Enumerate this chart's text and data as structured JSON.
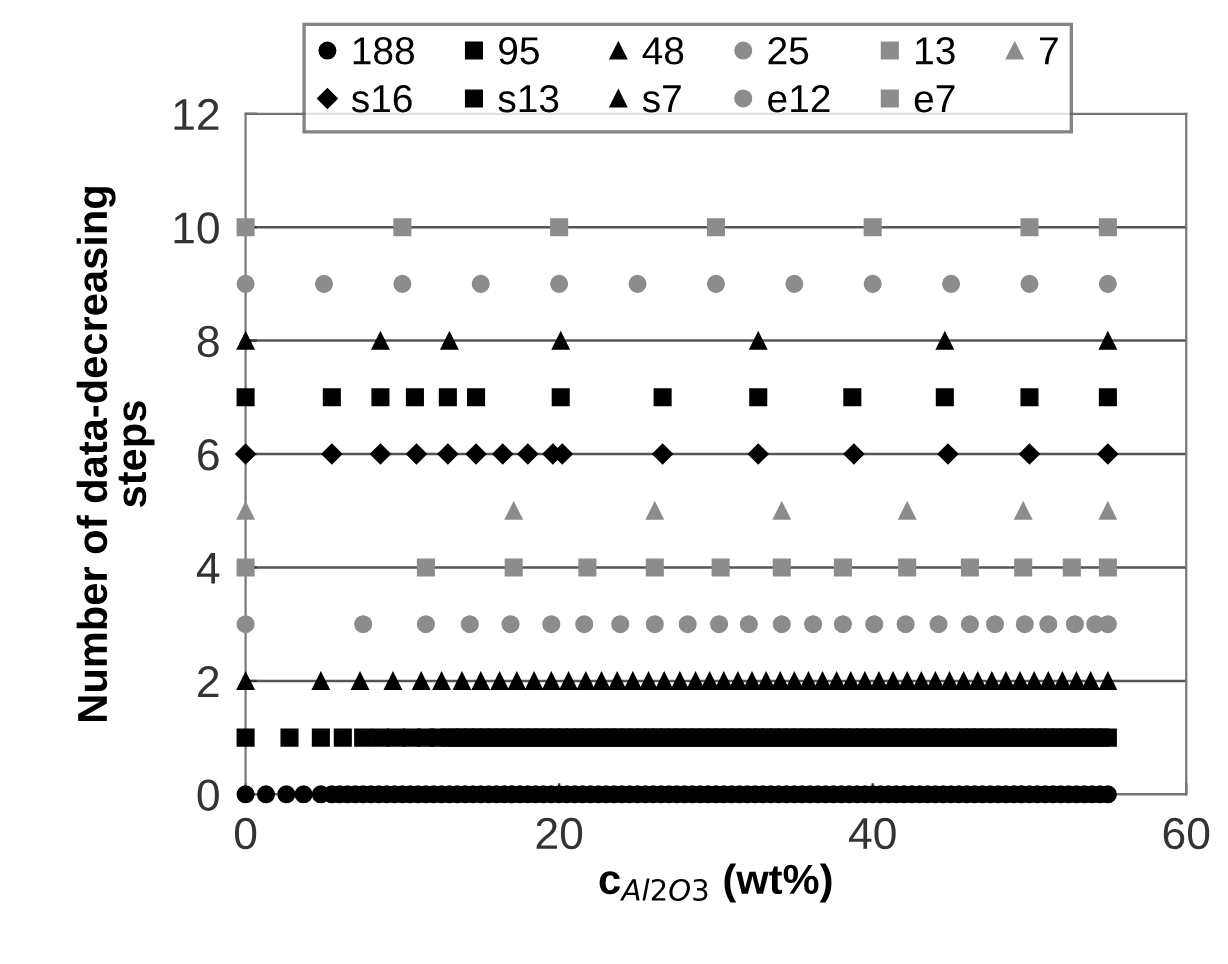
{
  "chart_data": {
    "type": "scatter",
    "xlabel": "c$_{Al2O3}$ (wt%)",
    "ylabel": "Number of data-decreasing\nsteps",
    "xlim": [
      0,
      60
    ],
    "xticks": [
      0,
      20,
      40,
      60
    ],
    "ylim": [
      0,
      12
    ],
    "yticks": [
      0,
      2,
      4,
      6,
      8,
      10,
      12
    ],
    "grid": "y",
    "legend": "top",
    "series": [
      {
        "name": "188",
        "color": "#000000",
        "marker": "circle",
        "x": [
          0,
          1.3,
          2.6,
          3.7,
          4.8,
          5.5,
          6,
          6.5,
          7,
          7.5,
          8,
          8.5,
          9,
          9.5,
          10,
          10.5,
          11,
          11.5,
          12,
          12.5,
          13,
          13.5,
          14,
          14.5,
          15,
          15.5,
          16,
          16.5,
          17,
          17.5,
          18,
          18.5,
          19,
          19.5,
          20,
          20.5,
          21,
          21.5,
          22,
          22.5,
          23,
          23.5,
          24,
          24.5,
          25,
          25.5,
          26,
          26.5,
          27,
          27.5,
          28,
          28.5,
          29,
          29.5,
          30,
          30.5,
          31,
          31.5,
          32,
          32.5,
          33,
          33.5,
          34,
          34.5,
          35,
          35.5,
          36,
          36.5,
          37,
          37.5,
          38,
          38.5,
          39,
          39.5,
          40,
          40.5,
          41,
          41.5,
          42,
          42.5,
          43,
          43.5,
          44,
          44.5,
          45,
          45.5,
          46,
          46.5,
          47,
          47.5,
          48,
          48.5,
          49,
          49.5,
          50,
          50.5,
          51,
          51.5,
          52,
          52.5,
          53,
          53.5,
          54,
          54.5,
          55
        ],
        "values": [
          0,
          0,
          0,
          0,
          0,
          0,
          0,
          0,
          0,
          0,
          0,
          0,
          0,
          0,
          0,
          0,
          0,
          0,
          0,
          0,
          0,
          0,
          0,
          0,
          0,
          0,
          0,
          0,
          0,
          0,
          0,
          0,
          0,
          0,
          0,
          0,
          0,
          0,
          0,
          0,
          0,
          0,
          0,
          0,
          0,
          0,
          0,
          0,
          0,
          0,
          0,
          0,
          0,
          0,
          0,
          0,
          0,
          0,
          0,
          0,
          0,
          0,
          0,
          0,
          0,
          0,
          0,
          0,
          0,
          0,
          0,
          0,
          0,
          0,
          0,
          0,
          0,
          0,
          0,
          0,
          0,
          0,
          0,
          0,
          0,
          0,
          0,
          0,
          0,
          0,
          0,
          0,
          0,
          0,
          0,
          0,
          0,
          0,
          0,
          0,
          0,
          0,
          0,
          0,
          0
        ]
      },
      {
        "name": "95",
        "color": "#000000",
        "marker": "square",
        "x": [
          0,
          2.8,
          4.8,
          6.2,
          7.5,
          8.6,
          9.6,
          10.6,
          11.5,
          12.3,
          13,
          13.5,
          14,
          14.5,
          15,
          15.5,
          16,
          16.5,
          17,
          17.5,
          18,
          18.5,
          19,
          19.5,
          20,
          20.5,
          21,
          21.5,
          22,
          22.5,
          23,
          23.5,
          24,
          24.5,
          25,
          25.5,
          26,
          26.5,
          27,
          27.5,
          28,
          28.5,
          29,
          29.5,
          30,
          30.5,
          31,
          31.5,
          32,
          32.5,
          33,
          33.5,
          34,
          34.5,
          35,
          35.5,
          36,
          36.5,
          37,
          37.5,
          38,
          38.5,
          39,
          39.5,
          40,
          40.5,
          41,
          41.5,
          42,
          42.5,
          43,
          43.5,
          44,
          44.5,
          45,
          45.5,
          46,
          46.5,
          47,
          47.5,
          48,
          48.5,
          49,
          49.5,
          50,
          50.5,
          51,
          51.5,
          52,
          52.5,
          53,
          53.5,
          54,
          54.5,
          55
        ],
        "values": [
          1,
          1,
          1,
          1,
          1,
          1,
          1,
          1,
          1,
          1,
          1,
          1,
          1,
          1,
          1,
          1,
          1,
          1,
          1,
          1,
          1,
          1,
          1,
          1,
          1,
          1,
          1,
          1,
          1,
          1,
          1,
          1,
          1,
          1,
          1,
          1,
          1,
          1,
          1,
          1,
          1,
          1,
          1,
          1,
          1,
          1,
          1,
          1,
          1,
          1,
          1,
          1,
          1,
          1,
          1,
          1,
          1,
          1,
          1,
          1,
          1,
          1,
          1,
          1,
          1,
          1,
          1,
          1,
          1,
          1,
          1,
          1,
          1,
          1,
          1,
          1,
          1,
          1,
          1,
          1,
          1,
          1,
          1,
          1,
          1,
          1,
          1,
          1,
          1,
          1,
          1,
          1,
          1,
          1,
          1
        ]
      },
      {
        "name": "48",
        "color": "#000000",
        "marker": "triangle",
        "x": [
          0,
          4.8,
          7.3,
          9.4,
          11.2,
          12.5,
          13.8,
          15.0,
          16.2,
          17.3,
          18.4,
          19.5,
          20.6,
          21.7,
          22.7,
          23.7,
          24.7,
          25.7,
          26.7,
          27.7,
          28.7,
          29.6,
          30.5,
          31.4,
          32.3,
          33.2,
          34.1,
          35.0,
          35.9,
          36.8,
          37.7,
          38.6,
          39.5,
          40.4,
          41.3,
          42.2,
          43.1,
          44.0,
          44.9,
          45.8,
          46.7,
          47.6,
          48.5,
          49.4,
          50.3,
          51.2,
          52.1,
          53.0,
          53.9,
          55
        ],
        "values": [
          2,
          2,
          2,
          2,
          2,
          2,
          2,
          2,
          2,
          2,
          2,
          2,
          2,
          2,
          2,
          2,
          2,
          2,
          2,
          2,
          2,
          2,
          2,
          2,
          2,
          2,
          2,
          2,
          2,
          2,
          2,
          2,
          2,
          2,
          2,
          2,
          2,
          2,
          2,
          2,
          2,
          2,
          2,
          2,
          2,
          2,
          2,
          2,
          2,
          2
        ]
      },
      {
        "name": "25",
        "color": "#8c8c8c",
        "marker": "circle",
        "x": [
          0,
          7.5,
          11.5,
          14.3,
          16.9,
          19.5,
          21.6,
          23.9,
          26.1,
          28.2,
          30.2,
          32.1,
          34.2,
          36.2,
          38.1,
          40.1,
          42.1,
          44.2,
          46.2,
          47.8,
          49.7,
          51.2,
          52.9,
          54.2,
          55
        ],
        "values": [
          3,
          3,
          3,
          3,
          3,
          3,
          3,
          3,
          3,
          3,
          3,
          3,
          3,
          3,
          3,
          3,
          3,
          3,
          3,
          3,
          3,
          3,
          3,
          3,
          3
        ]
      },
      {
        "name": "13",
        "color": "#8c8c8c",
        "marker": "square",
        "x": [
          0,
          11.5,
          17.1,
          21.8,
          26.1,
          30.3,
          34.2,
          38.1,
          42.2,
          46.2,
          49.6,
          52.7,
          55
        ],
        "values": [
          4,
          4,
          4,
          4,
          4,
          4,
          4,
          4,
          4,
          4,
          4,
          4,
          4
        ]
      },
      {
        "name": "7",
        "color": "#8c8c8c",
        "marker": "triangle",
        "x": [
          0,
          17.1,
          26.1,
          34.2,
          42.2,
          49.6,
          55
        ],
        "values": [
          5,
          5,
          5,
          5,
          5,
          5,
          5
        ]
      },
      {
        "name": "s16",
        "color": "#000000",
        "marker": "diamond",
        "x": [
          0,
          5.5,
          8.6,
          10.9,
          12.9,
          14.7,
          16.4,
          18.0,
          19.6,
          20.2,
          26.6,
          32.7,
          38.8,
          44.8,
          50,
          55
        ],
        "values": [
          6,
          6,
          6,
          6,
          6,
          6,
          6,
          6,
          6,
          6,
          6,
          6,
          6,
          6,
          6,
          6
        ]
      },
      {
        "name": "s13",
        "color": "#000000",
        "marker": "square",
        "x": [
          0,
          5.5,
          8.6,
          10.8,
          12.9,
          14.7,
          20.1,
          26.6,
          32.7,
          38.7,
          44.6,
          50,
          55
        ],
        "values": [
          7,
          7,
          7,
          7,
          7,
          7,
          7,
          7,
          7,
          7,
          7,
          7,
          7
        ]
      },
      {
        "name": "s7",
        "color": "#000000",
        "marker": "triangle",
        "x": [
          0,
          8.6,
          13,
          20.1,
          32.7,
          44.6,
          55
        ],
        "values": [
          8,
          8,
          8,
          8,
          8,
          8,
          8
        ]
      },
      {
        "name": "e12",
        "color": "#8c8c8c",
        "marker": "circle",
        "x": [
          0,
          5,
          10,
          15,
          20,
          25,
          30,
          35,
          40,
          45,
          50,
          55
        ],
        "values": [
          9,
          9,
          9,
          9,
          9,
          9,
          9,
          9,
          9,
          9,
          9,
          9
        ]
      },
      {
        "name": "e7",
        "color": "#8c8c8c",
        "marker": "square",
        "x": [
          0,
          10,
          20,
          30,
          40,
          50,
          55
        ],
        "values": [
          10,
          10,
          10,
          10,
          10,
          10,
          10
        ]
      }
    ]
  }
}
